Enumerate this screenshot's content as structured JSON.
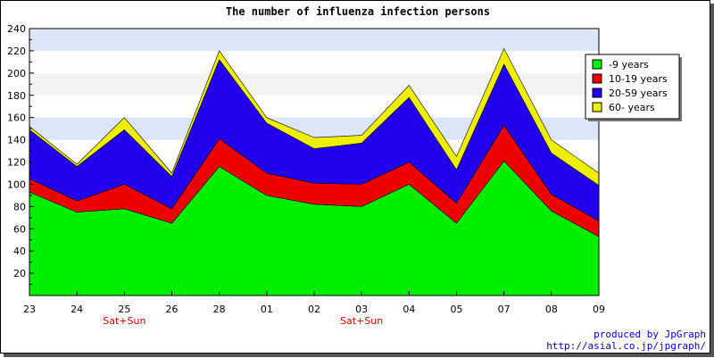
{
  "chart_data": {
    "type": "area",
    "stacked": true,
    "title": "The number of influenza infection persons",
    "categories": [
      "23",
      "24",
      "25",
      "26",
      "28",
      "01",
      "02",
      "03",
      "04",
      "05",
      "07",
      "08",
      "09"
    ],
    "category_notes": [
      "",
      "",
      "Sat+Sun",
      "",
      "",
      "",
      "",
      "Sat+Sun",
      "",
      "",
      "",
      "",
      ""
    ],
    "ylim": [
      0,
      240
    ],
    "y_ticks": [
      20,
      40,
      60,
      80,
      100,
      120,
      140,
      160,
      180,
      200,
      220,
      240
    ],
    "grid": true,
    "legend_position": "right",
    "series": [
      {
        "name": "-9 years",
        "color": "#00ee00",
        "values": [
          93,
          75,
          78,
          65,
          116,
          90,
          82,
          80,
          100,
          65,
          121,
          76,
          53
        ]
      },
      {
        "name": "10-19 years",
        "color": "#ee0000",
        "values": [
          12,
          10,
          22,
          13,
          25,
          20,
          19,
          20,
          20,
          18,
          32,
          15,
          14
        ]
      },
      {
        "name": "20-59 years",
        "color": "#2200ee",
        "values": [
          44,
          31,
          49,
          29,
          71,
          45,
          31,
          37,
          58,
          30,
          55,
          37,
          32
        ]
      },
      {
        "name": "60- years",
        "color": "#eeee00",
        "values": [
          3,
          2,
          11,
          3,
          8,
          5,
          10,
          7,
          11,
          12,
          14,
          12,
          11
        ]
      }
    ]
  },
  "credits": {
    "line1": "produced by JpGraph",
    "line2": "http://asial.co.jp/jpgraph/"
  }
}
